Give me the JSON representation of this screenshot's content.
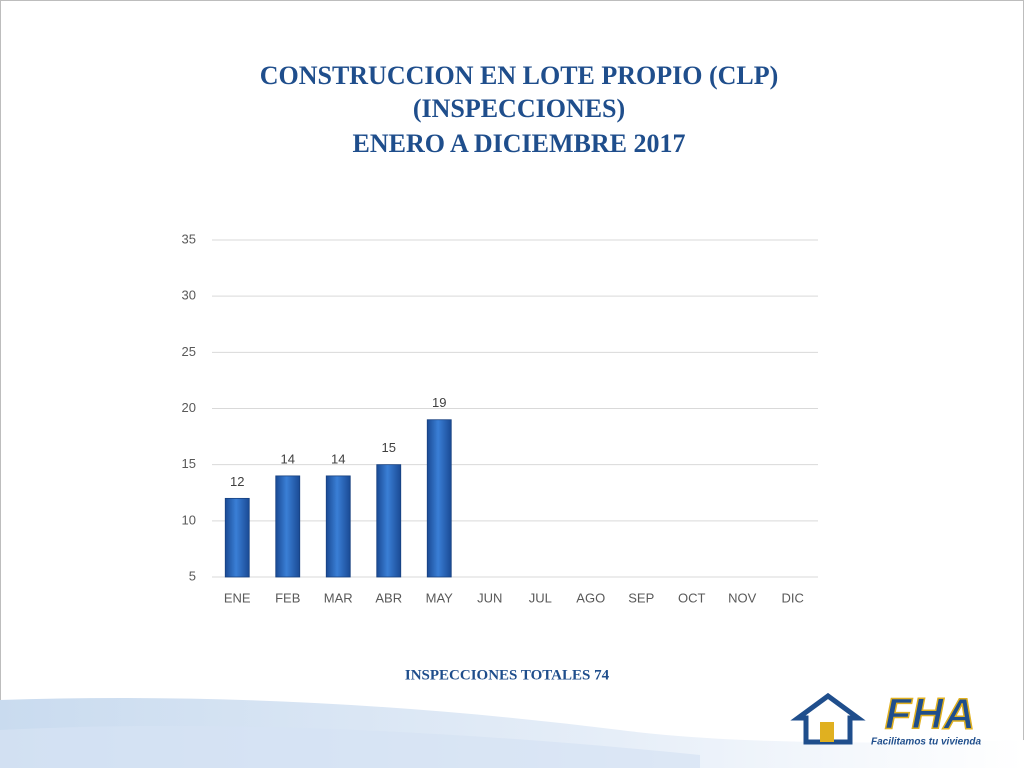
{
  "chart_data": {
    "type": "bar",
    "title_lines": [
      "CONSTRUCCION EN LOTE PROPIO (CLP)",
      "(INSPECCIONES)",
      "ENERO A DICIEMBRE 2017"
    ],
    "categories": [
      "ENE",
      "FEB",
      "MAR",
      "ABR",
      "MAY",
      "JUN",
      "JUL",
      "AGO",
      "SEP",
      "OCT",
      "NOV",
      "DIC"
    ],
    "values": [
      12,
      14,
      14,
      15,
      19,
      null,
      null,
      null,
      null,
      null,
      null,
      null
    ],
    "color": "#2563b8",
    "ylim": [
      5,
      35
    ],
    "yticks": [
      5,
      10,
      15,
      20,
      25,
      30,
      35
    ],
    "grid": true,
    "footer": "INSPECCIONES TOTALES 74"
  },
  "logo": {
    "name": "FHA",
    "tagline": "Facilitamos tu vivienda"
  }
}
